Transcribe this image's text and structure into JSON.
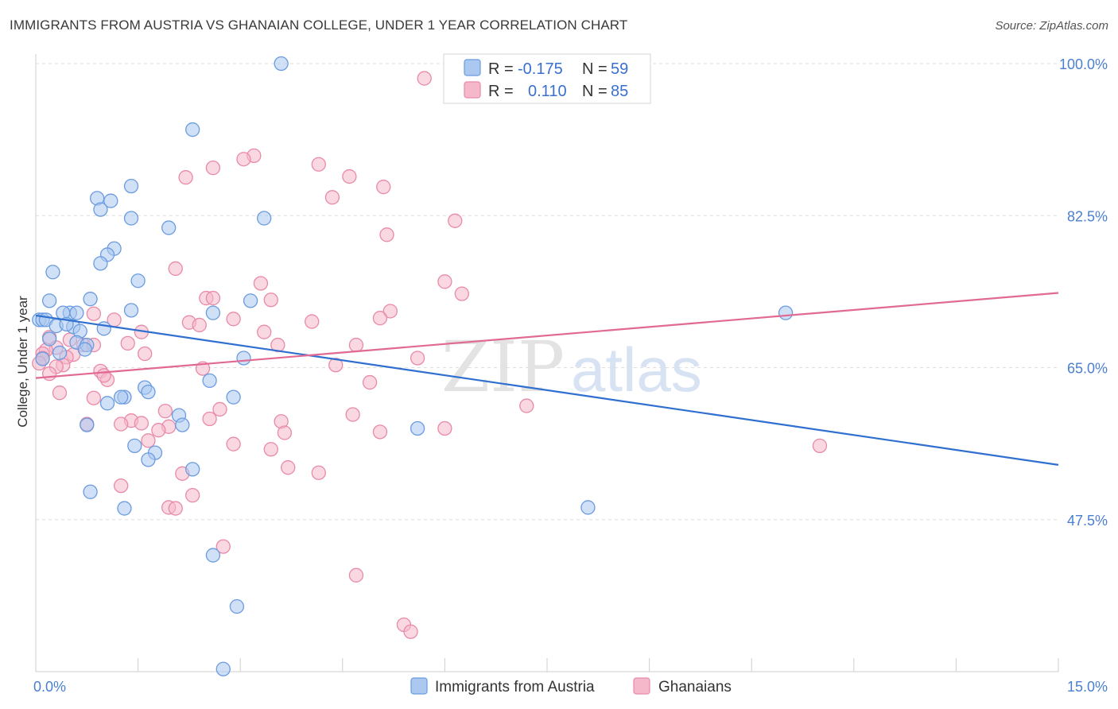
{
  "title": "IMMIGRANTS FROM AUSTRIA VS GHANAIAN COLLEGE, UNDER 1 YEAR CORRELATION CHART",
  "source": "Source: ZipAtlas.com",
  "watermark": {
    "zip": "ZIP",
    "atlas": "atlas"
  },
  "colors": {
    "blue_fill": "#aac8f0",
    "blue_stroke": "#6b9be0",
    "blue_line": "#2f6fd0",
    "pink_fill": "#f5b8cb",
    "pink_stroke": "#e88aa8",
    "pink_line": "#e06a92",
    "axis_label": "#4a7fd1",
    "grid": "#dddddd"
  },
  "legend": {
    "row1": {
      "r_label": "R =",
      "r_value": "-0.175",
      "n_label": "N =",
      "n_value": "59"
    },
    "row2": {
      "r_label": "R =",
      "r_value": "0.110",
      "n_label": "N =",
      "n_value": "85"
    }
  },
  "chart_data": {
    "type": "scatter",
    "title": "IMMIGRANTS FROM AUSTRIA VS GHANAIAN COLLEGE, UNDER 1 YEAR CORRELATION CHART",
    "xlabel": "",
    "ylabel": "College, Under 1 year",
    "xlim": [
      0,
      15
    ],
    "ylim": [
      30,
      100
    ],
    "x_tick_labels": [
      "0.0%",
      "15.0%"
    ],
    "y_ticks": [
      47.5,
      65.0,
      82.5,
      100.0
    ],
    "y_tick_labels": [
      "47.5%",
      "65.0%",
      "82.5%",
      "100.0%"
    ],
    "legend_position": "top-center",
    "series": [
      {
        "name": "Immigrants from Austria",
        "color": "#6b9be0",
        "r": -0.175,
        "n": 59,
        "trend": {
          "x": [
            0,
            15
          ],
          "y": [
            71.0,
            53.8
          ]
        },
        "points": [
          [
            3.6,
            100.0
          ],
          [
            2.3,
            92.4
          ],
          [
            1.4,
            85.9
          ],
          [
            0.9,
            84.5
          ],
          [
            1.1,
            84.2
          ],
          [
            0.95,
            83.2
          ],
          [
            1.4,
            82.2
          ],
          [
            3.35,
            82.2
          ],
          [
            1.95,
            81.1
          ],
          [
            1.15,
            78.7
          ],
          [
            1.05,
            78.0
          ],
          [
            0.95,
            77.0
          ],
          [
            0.25,
            76.0
          ],
          [
            0.8,
            72.9
          ],
          [
            0.2,
            72.7
          ],
          [
            1.4,
            71.6
          ],
          [
            3.15,
            72.7
          ],
          [
            0.5,
            71.3
          ],
          [
            0.6,
            71.3
          ],
          [
            0.4,
            71.3
          ],
          [
            2.6,
            71.3
          ],
          [
            0.05,
            70.5
          ],
          [
            0.1,
            70.5
          ],
          [
            0.15,
            70.5
          ],
          [
            0.3,
            69.8
          ],
          [
            0.55,
            69.7
          ],
          [
            0.65,
            69.2
          ],
          [
            1.0,
            69.5
          ],
          [
            0.2,
            68.3
          ],
          [
            0.6,
            67.9
          ],
          [
            0.75,
            67.6
          ],
          [
            0.72,
            67.1
          ],
          [
            0.35,
            66.7
          ],
          [
            0.1,
            66.0
          ],
          [
            3.05,
            66.1
          ],
          [
            2.55,
            63.5
          ],
          [
            1.6,
            62.7
          ],
          [
            1.65,
            62.2
          ],
          [
            1.3,
            61.6
          ],
          [
            2.9,
            61.6
          ],
          [
            1.05,
            60.9
          ],
          [
            2.1,
            59.5
          ],
          [
            2.15,
            58.4
          ],
          [
            0.75,
            58.4
          ],
          [
            5.6,
            58.0
          ],
          [
            1.45,
            56.0
          ],
          [
            1.75,
            55.2
          ],
          [
            1.65,
            54.4
          ],
          [
            2.3,
            53.3
          ],
          [
            0.8,
            50.7
          ],
          [
            1.3,
            48.8
          ],
          [
            8.1,
            48.9
          ],
          [
            11.0,
            71.3
          ],
          [
            2.6,
            43.4
          ],
          [
            2.95,
            37.5
          ],
          [
            2.75,
            30.3
          ],
          [
            1.5,
            75.0
          ],
          [
            0.45,
            70.0
          ],
          [
            1.25,
            61.6
          ]
        ]
      },
      {
        "name": "Ghanaians",
        "color": "#e88aa8",
        "r": 0.11,
        "n": 85,
        "trend": {
          "x": [
            0,
            15
          ],
          "y": [
            63.8,
            73.6
          ]
        },
        "points": [
          [
            5.7,
            98.3
          ],
          [
            3.2,
            89.4
          ],
          [
            3.05,
            89.0
          ],
          [
            4.15,
            88.4
          ],
          [
            2.6,
            88.0
          ],
          [
            4.6,
            87.0
          ],
          [
            2.2,
            86.9
          ],
          [
            5.1,
            85.8
          ],
          [
            4.35,
            84.6
          ],
          [
            6.15,
            81.9
          ],
          [
            5.15,
            80.3
          ],
          [
            2.05,
            76.4
          ],
          [
            6.0,
            74.9
          ],
          [
            3.3,
            74.7
          ],
          [
            2.5,
            73.0
          ],
          [
            2.6,
            73.0
          ],
          [
            6.25,
            73.5
          ],
          [
            3.45,
            72.8
          ],
          [
            5.2,
            71.5
          ],
          [
            0.85,
            71.2
          ],
          [
            2.9,
            70.6
          ],
          [
            5.05,
            70.7
          ],
          [
            4.05,
            70.3
          ],
          [
            2.25,
            70.2
          ],
          [
            2.4,
            69.9
          ],
          [
            1.15,
            70.5
          ],
          [
            1.55,
            69.1
          ],
          [
            3.35,
            69.1
          ],
          [
            0.2,
            68.5
          ],
          [
            0.5,
            68.2
          ],
          [
            1.35,
            67.8
          ],
          [
            0.7,
            67.6
          ],
          [
            0.85,
            67.6
          ],
          [
            3.55,
            67.6
          ],
          [
            4.7,
            67.6
          ],
          [
            0.3,
            67.3
          ],
          [
            0.15,
            67.0
          ],
          [
            0.1,
            66.6
          ],
          [
            1.6,
            66.6
          ],
          [
            0.55,
            66.5
          ],
          [
            0.45,
            66.2
          ],
          [
            0.1,
            66.1
          ],
          [
            5.6,
            66.1
          ],
          [
            0.4,
            65.3
          ],
          [
            4.4,
            65.3
          ],
          [
            0.3,
            65.1
          ],
          [
            0.95,
            64.6
          ],
          [
            2.45,
            64.9
          ],
          [
            0.2,
            64.3
          ],
          [
            1.05,
            63.6
          ],
          [
            1.0,
            64.1
          ],
          [
            4.9,
            63.3
          ],
          [
            0.35,
            62.1
          ],
          [
            0.85,
            61.5
          ],
          [
            7.2,
            60.6
          ],
          [
            2.7,
            60.2
          ],
          [
            1.9,
            60.0
          ],
          [
            4.65,
            59.6
          ],
          [
            2.55,
            59.1
          ],
          [
            1.4,
            58.9
          ],
          [
            3.6,
            58.8
          ],
          [
            1.25,
            58.5
          ],
          [
            1.55,
            58.6
          ],
          [
            0.75,
            58.5
          ],
          [
            1.95,
            58.2
          ],
          [
            6.0,
            58.0
          ],
          [
            5.05,
            57.6
          ],
          [
            1.8,
            57.8
          ],
          [
            3.65,
            57.5
          ],
          [
            1.65,
            56.6
          ],
          [
            2.9,
            56.2
          ],
          [
            11.5,
            56.0
          ],
          [
            3.45,
            55.6
          ],
          [
            3.7,
            53.5
          ],
          [
            4.15,
            52.9
          ],
          [
            2.15,
            52.8
          ],
          [
            1.25,
            51.4
          ],
          [
            2.3,
            50.3
          ],
          [
            1.95,
            48.9
          ],
          [
            2.05,
            48.8
          ],
          [
            2.75,
            44.4
          ],
          [
            4.7,
            41.1
          ],
          [
            5.4,
            35.4
          ],
          [
            5.5,
            34.6
          ],
          [
            0.05,
            65.5
          ]
        ]
      }
    ]
  },
  "bottom_legend": {
    "series1": "Immigrants from Austria",
    "series2": "Ghanaians"
  }
}
